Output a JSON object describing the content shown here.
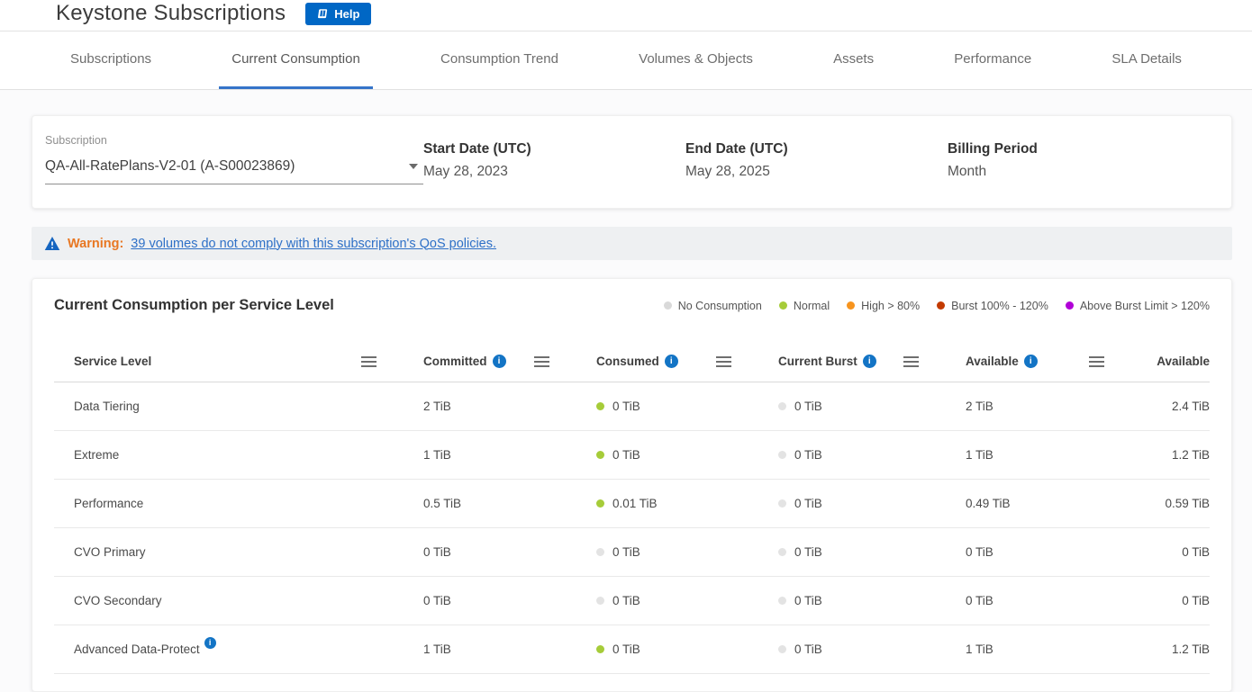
{
  "page": {
    "title": "Keystone Subscriptions",
    "help_label": "Help"
  },
  "tabs": [
    {
      "label": "Subscriptions",
      "active": false
    },
    {
      "label": "Current Consumption",
      "active": true
    },
    {
      "label": "Consumption Trend",
      "active": false
    },
    {
      "label": "Volumes & Objects",
      "active": false
    },
    {
      "label": "Assets",
      "active": false
    },
    {
      "label": "Performance",
      "active": false
    },
    {
      "label": "SLA Details",
      "active": false
    }
  ],
  "filters": {
    "subscription": {
      "label": "Subscription",
      "value": "QA-All-RatePlans-V2-01 (A-S00023869)"
    },
    "start_date": {
      "label": "Start Date (UTC)",
      "value": "May 28, 2023"
    },
    "end_date": {
      "label": "End Date (UTC)",
      "value": "May 28, 2025"
    },
    "billing_period": {
      "label": "Billing Period",
      "value": "Month"
    }
  },
  "warning": {
    "prefix": "Warning:",
    "link": "39 volumes do not comply with this subscription's QoS policies."
  },
  "consumption": {
    "title": "Current Consumption per Service Level",
    "legend": [
      {
        "label": "No Consumption",
        "color": "#d9d9d9"
      },
      {
        "label": "Normal",
        "color": "#a6cc39"
      },
      {
        "label": "High > 80%",
        "color": "#f7941e"
      },
      {
        "label": "Burst 100% - 120%",
        "color": "#c33a00"
      },
      {
        "label": "Above Burst Limit > 120%",
        "color": "#b100d7"
      }
    ],
    "status_colors": {
      "none": "#e3e3e3",
      "normal": "#a6cc39"
    },
    "columns": [
      {
        "label": "Service Level",
        "info": false,
        "menu": true
      },
      {
        "label": "Committed",
        "info": true,
        "menu": true
      },
      {
        "label": "Consumed",
        "info": true,
        "menu": true
      },
      {
        "label": "Current Burst",
        "info": true,
        "menu": true
      },
      {
        "label": "Available",
        "info": true,
        "menu": true
      },
      {
        "label": "Available",
        "info": false,
        "menu": false
      }
    ],
    "rows": [
      {
        "service_level": "Data Tiering",
        "info": false,
        "committed": "2 TiB",
        "consumed": {
          "value": "0 TiB",
          "status": "normal"
        },
        "current_burst": {
          "value": "0 TiB",
          "status": "none"
        },
        "available": "2 TiB",
        "available2": "2.4 TiB"
      },
      {
        "service_level": "Extreme",
        "info": false,
        "committed": "1 TiB",
        "consumed": {
          "value": "0 TiB",
          "status": "normal"
        },
        "current_burst": {
          "value": "0 TiB",
          "status": "none"
        },
        "available": "1 TiB",
        "available2": "1.2 TiB"
      },
      {
        "service_level": "Performance",
        "info": false,
        "committed": "0.5 TiB",
        "consumed": {
          "value": "0.01 TiB",
          "status": "normal"
        },
        "current_burst": {
          "value": "0 TiB",
          "status": "none"
        },
        "available": "0.49 TiB",
        "available2": "0.59 TiB"
      },
      {
        "service_level": "CVO Primary",
        "info": false,
        "committed": "0 TiB",
        "consumed": {
          "value": "0 TiB",
          "status": "none"
        },
        "current_burst": {
          "value": "0 TiB",
          "status": "none"
        },
        "available": "0 TiB",
        "available2": "0 TiB"
      },
      {
        "service_level": "CVO Secondary",
        "info": false,
        "committed": "0 TiB",
        "consumed": {
          "value": "0 TiB",
          "status": "none"
        },
        "current_burst": {
          "value": "0 TiB",
          "status": "none"
        },
        "available": "0 TiB",
        "available2": "0 TiB"
      },
      {
        "service_level": "Advanced Data-Protect",
        "info": true,
        "committed": "1 TiB",
        "consumed": {
          "value": "0 TiB",
          "status": "normal"
        },
        "current_burst": {
          "value": "0 TiB",
          "status": "none"
        },
        "available": "1 TiB",
        "available2": "1.2 TiB"
      }
    ]
  }
}
